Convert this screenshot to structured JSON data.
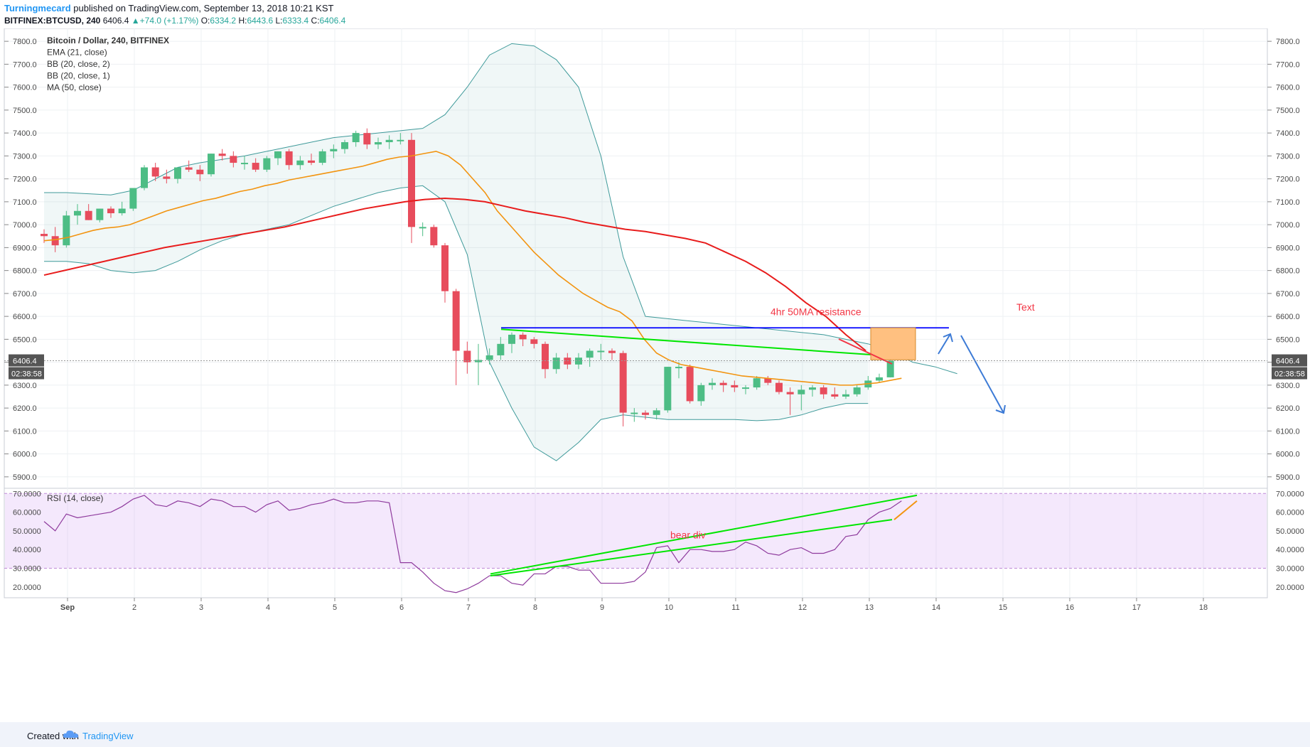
{
  "header": {
    "author": "Turningmecard",
    "published_text": "published on TradingView.com, September 13, 2018 10:21 KST",
    "symbol": "BITFINEX:BTCUSD, 240",
    "last": "6406.4",
    "change": "+74.0 (+1.17%)",
    "ohlc": [
      {
        "label": "O:",
        "value": "6334.2"
      },
      {
        "label": "H:",
        "value": "6443.6"
      },
      {
        "label": "L:",
        "value": "6333.4"
      },
      {
        "label": "C:",
        "value": "6406.4"
      }
    ]
  },
  "footer": {
    "created_with": "Created with",
    "brand": "TradingView"
  },
  "chart_data": {
    "type": "candlestick",
    "legend": [
      "Bitcoin / Dollar, 240, BITFINEX",
      "EMA (21, close)",
      "BB (20, close, 2)",
      "BB (20, close, 1)",
      "MA (50, close)"
    ],
    "price_axis": {
      "ylim": [
        5850,
        7850
      ],
      "ticks": [
        "7800.0",
        "7700.0",
        "7600.0",
        "7500.0",
        "7400.0",
        "7300.0",
        "7200.0",
        "7100.0",
        "7000.0",
        "6900.0",
        "6800.0",
        "6700.0",
        "6600.0",
        "6500.0",
        "6400.0",
        "6300.0",
        "6200.0",
        "6100.0",
        "6000.0",
        "5900.0"
      ]
    },
    "last_price_label": "6406.4",
    "countdown_label": "02:38:58",
    "x_axis": {
      "labels": [
        "Sep",
        "2",
        "3",
        "4",
        "5",
        "6",
        "7",
        "8",
        "9",
        "10",
        "11",
        "12",
        "13",
        "14",
        "15",
        "16",
        "17",
        "18"
      ]
    },
    "candles": [
      [
        6960,
        6980,
        6920,
        6950
      ],
      [
        6950,
        6990,
        6880,
        6910
      ],
      [
        6910,
        7060,
        6900,
        7040
      ],
      [
        7040,
        7090,
        7000,
        7060
      ],
      [
        7060,
        7090,
        7020,
        7020
      ],
      [
        7020,
        7070,
        7010,
        7070
      ],
      [
        7070,
        7080,
        7030,
        7050
      ],
      [
        7050,
        7100,
        7040,
        7070
      ],
      [
        7070,
        7160,
        7060,
        7160
      ],
      [
        7160,
        7260,
        7150,
        7250
      ],
      [
        7250,
        7270,
        7190,
        7210
      ],
      [
        7210,
        7240,
        7180,
        7200
      ],
      [
        7200,
        7250,
        7180,
        7250
      ],
      [
        7250,
        7280,
        7230,
        7240
      ],
      [
        7240,
        7260,
        7190,
        7220
      ],
      [
        7220,
        7310,
        7210,
        7310
      ],
      [
        7310,
        7330,
        7280,
        7300
      ],
      [
        7300,
        7320,
        7250,
        7270
      ],
      [
        7270,
        7300,
        7240,
        7270
      ],
      [
        7270,
        7290,
        7230,
        7240
      ],
      [
        7240,
        7300,
        7230,
        7290
      ],
      [
        7290,
        7320,
        7260,
        7320
      ],
      [
        7320,
        7330,
        7240,
        7260
      ],
      [
        7260,
        7300,
        7240,
        7280
      ],
      [
        7280,
        7310,
        7260,
        7270
      ],
      [
        7270,
        7330,
        7260,
        7320
      ],
      [
        7320,
        7350,
        7290,
        7330
      ],
      [
        7330,
        7370,
        7310,
        7360
      ],
      [
        7360,
        7410,
        7340,
        7400
      ],
      [
        7400,
        7420,
        7330,
        7350
      ],
      [
        7350,
        7380,
        7330,
        7360
      ],
      [
        7360,
        7390,
        7330,
        7370
      ],
      [
        7370,
        7400,
        7350,
        7370
      ],
      [
        7370,
        7400,
        6920,
        6990
      ],
      [
        6990,
        7010,
        6950,
        6990
      ],
      [
        6990,
        7000,
        6900,
        6910
      ],
      [
        6910,
        6920,
        6660,
        6710
      ],
      [
        6710,
        6720,
        6300,
        6450
      ],
      [
        6450,
        6490,
        6350,
        6400
      ],
      [
        6400,
        6480,
        6300,
        6410
      ],
      [
        6410,
        6460,
        6390,
        6430
      ],
      [
        6430,
        6510,
        6410,
        6480
      ],
      [
        6480,
        6530,
        6440,
        6520
      ],
      [
        6520,
        6530,
        6470,
        6500
      ],
      [
        6500,
        6510,
        6460,
        6480
      ],
      [
        6480,
        6490,
        6330,
        6370
      ],
      [
        6370,
        6440,
        6350,
        6420
      ],
      [
        6420,
        6440,
        6370,
        6390
      ],
      [
        6390,
        6440,
        6370,
        6420
      ],
      [
        6420,
        6460,
        6380,
        6450
      ],
      [
        6450,
        6480,
        6410,
        6450
      ],
      [
        6450,
        6460,
        6410,
        6440
      ],
      [
        6440,
        6450,
        6120,
        6180
      ],
      [
        6180,
        6200,
        6140,
        6180
      ],
      [
        6180,
        6190,
        6150,
        6170
      ],
      [
        6170,
        6200,
        6150,
        6190
      ],
      [
        6190,
        6380,
        6180,
        6380
      ],
      [
        6380,
        6400,
        6330,
        6380
      ],
      [
        6380,
        6390,
        6220,
        6230
      ],
      [
        6230,
        6310,
        6210,
        6300
      ],
      [
        6300,
        6330,
        6280,
        6310
      ],
      [
        6310,
        6320,
        6270,
        6300
      ],
      [
        6300,
        6320,
        6270,
        6290
      ],
      [
        6290,
        6300,
        6260,
        6290
      ],
      [
        6290,
        6340,
        6280,
        6330
      ],
      [
        6330,
        6340,
        6300,
        6310
      ],
      [
        6310,
        6320,
        6260,
        6270
      ],
      [
        6270,
        6290,
        6170,
        6260
      ],
      [
        6260,
        6300,
        6190,
        6280
      ],
      [
        6280,
        6300,
        6250,
        6290
      ],
      [
        6290,
        6300,
        6240,
        6260
      ],
      [
        6260,
        6290,
        6240,
        6250
      ],
      [
        6250,
        6280,
        6240,
        6260
      ],
      [
        6260,
        6300,
        6250,
        6290
      ],
      [
        6290,
        6340,
        6280,
        6320
      ],
      [
        6320,
        6350,
        6310,
        6334
      ],
      [
        6334,
        6443.6,
        6333.4,
        6406.4
      ]
    ],
    "ema21": [
      6930,
      6935,
      6945,
      6960,
      6975,
      6985,
      6990,
      7000,
      7020,
      7040,
      7060,
      7075,
      7090,
      7105,
      7115,
      7130,
      7145,
      7155,
      7170,
      7180,
      7195,
      7205,
      7215,
      7225,
      7235,
      7245,
      7255,
      7270,
      7285,
      7295,
      7300,
      7310,
      7320,
      7300,
      7260,
      7200,
      7140,
      7060,
      7000,
      6940,
      6880,
      6830,
      6780,
      6740,
      6700,
      6670,
      6640,
      6620,
      6580,
      6500,
      6440,
      6410,
      6390,
      6380,
      6370,
      6360,
      6350,
      6340,
      6335,
      6330,
      6325,
      6320,
      6315,
      6310,
      6305,
      6300,
      6300,
      6305,
      6310,
      6320,
      6330
    ],
    "ma50": [
      6780,
      6800,
      6820,
      6840,
      6860,
      6880,
      6900,
      6915,
      6930,
      6945,
      6960,
      6975,
      6990,
      7010,
      7030,
      7050,
      7070,
      7085,
      7100,
      7110,
      7115,
      7110,
      7100,
      7080,
      7060,
      7045,
      7030,
      7010,
      6995,
      6980,
      6970,
      6955,
      6940,
      6920,
      6880,
      6840,
      6790,
      6730,
      6660,
      6600,
      6520,
      6450
    ],
    "bb2_upper": [
      7140,
      7140,
      7135,
      7130,
      7150,
      7200,
      7250,
      7270,
      7285,
      7300,
      7320,
      7340,
      7360,
      7380,
      7390,
      7400,
      7410,
      7420,
      7480,
      7600,
      7740,
      7790,
      7780,
      7720,
      7600,
      7300,
      6860,
      6600,
      6590,
      6580,
      6570,
      6560,
      6550,
      6540,
      6530,
      6520,
      6500,
      6480,
      6450,
      6400,
      6380,
      6350
    ],
    "bb2_lower": [
      6840,
      6840,
      6830,
      6800,
      6790,
      6800,
      6840,
      6890,
      6930,
      6960,
      6980,
      7000,
      7040,
      7080,
      7110,
      7140,
      7160,
      7170,
      7100,
      6870,
      6400,
      6200,
      6030,
      5970,
      6050,
      6150,
      6170,
      6160,
      6150,
      6150,
      6150,
      6150,
      6145,
      6150,
      6170,
      6200,
      6220,
      6220
    ],
    "rsi": {
      "label": "RSI (14, close)",
      "ylim": [
        15,
        72
      ],
      "ticks": [
        "70.0000",
        "60.0000",
        "50.0000",
        "40.0000",
        "30.0000",
        "20.0000"
      ],
      "band": [
        30,
        70
      ],
      "values": [
        55,
        50,
        59,
        57,
        58,
        59,
        60,
        63,
        67,
        69,
        64,
        63,
        66,
        65,
        63,
        67,
        66,
        63,
        63,
        60,
        64,
        66,
        61,
        62,
        64,
        65,
        67,
        65,
        65,
        66,
        66,
        65,
        33,
        33,
        28,
        22,
        18,
        17,
        19,
        22,
        26,
        26,
        22,
        21,
        27,
        27,
        31,
        31,
        29,
        29,
        22,
        22,
        22,
        23,
        28,
        41,
        42,
        33,
        40,
        40,
        39,
        39,
        40,
        44,
        42,
        38,
        37,
        40,
        41,
        38,
        38,
        40,
        47,
        48,
        56,
        60,
        62,
        66
      ]
    },
    "annotations": {
      "resistance_label": "4hr 50MA resistance",
      "text_label": "Text",
      "bear_div_label": "bear div",
      "horizontal_level": 6550,
      "resistance_color": "#f23645",
      "level_color": "#0000ff",
      "trend_color": "#00e600",
      "arrow_color": "#3d7bd6",
      "box_color": "#ffc080"
    }
  }
}
